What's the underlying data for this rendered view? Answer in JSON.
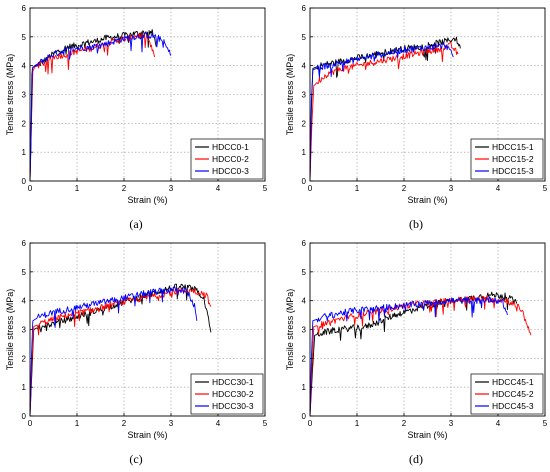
{
  "chart_data": [
    {
      "type": "line",
      "panel_label": "(a)",
      "xlabel": "Strain (%)",
      "ylabel": "Tensile stress (MPa)",
      "xlim": [
        0,
        5
      ],
      "ylim": [
        0,
        6
      ],
      "xticks": [
        "0",
        "1",
        "2",
        "3",
        "4",
        "5"
      ],
      "yticks": [
        "0",
        "1",
        "2",
        "3",
        "4",
        "5",
        "6"
      ],
      "grid": true,
      "legend_position": "bottom-right",
      "series": [
        {
          "name": "HDCC0-1",
          "color": "#000000",
          "points": [
            [
              0,
              0
            ],
            [
              0.02,
              1.5
            ],
            [
              0.04,
              3.7
            ],
            [
              0.06,
              3.95
            ],
            [
              0.2,
              4.05
            ],
            [
              0.4,
              4.3
            ],
            [
              0.6,
              4.5
            ],
            [
              0.8,
              4.65
            ],
            [
              1.0,
              4.7
            ],
            [
              1.2,
              4.8
            ],
            [
              1.4,
              4.85
            ],
            [
              1.6,
              4.95
            ],
            [
              1.8,
              5.0
            ],
            [
              2.0,
              5.05
            ],
            [
              2.2,
              5.1
            ],
            [
              2.4,
              5.15
            ],
            [
              2.6,
              5.15
            ],
            [
              2.7,
              4.7
            ]
          ]
        },
        {
          "name": "HDCC0-2",
          "color": "#ff0000",
          "points": [
            [
              0,
              0
            ],
            [
              0.03,
              2.0
            ],
            [
              0.06,
              3.8
            ],
            [
              0.1,
              3.95
            ],
            [
              0.3,
              4.1
            ],
            [
              0.5,
              4.3
            ],
            [
              0.8,
              4.4
            ],
            [
              1.0,
              4.5
            ],
            [
              1.3,
              4.6
            ],
            [
              1.6,
              4.75
            ],
            [
              1.9,
              4.9
            ],
            [
              2.1,
              4.95
            ],
            [
              2.3,
              5.05
            ],
            [
              2.5,
              5.0
            ],
            [
              2.65,
              4.3
            ]
          ]
        },
        {
          "name": "HDCC0-3",
          "color": "#0000ff",
          "points": [
            [
              0,
              0
            ],
            [
              0.02,
              1.2
            ],
            [
              0.05,
              3.9
            ],
            [
              0.1,
              4.0
            ],
            [
              0.3,
              4.2
            ],
            [
              0.5,
              4.4
            ],
            [
              0.8,
              4.55
            ],
            [
              1.0,
              4.6
            ],
            [
              1.3,
              4.65
            ],
            [
              1.6,
              4.75
            ],
            [
              1.9,
              4.9
            ],
            [
              2.2,
              5.0
            ],
            [
              2.5,
              5.05
            ],
            [
              2.7,
              5.0
            ],
            [
              2.85,
              4.8
            ],
            [
              3.0,
              4.35
            ]
          ]
        }
      ]
    },
    {
      "type": "line",
      "panel_label": "(b)",
      "xlabel": "Strain (%)",
      "ylabel": "Tensile stress (MPa)",
      "xlim": [
        0,
        5
      ],
      "ylim": [
        0,
        6
      ],
      "xticks": [
        "0",
        "1",
        "2",
        "3",
        "4",
        "5"
      ],
      "yticks": [
        "0",
        "1",
        "2",
        "3",
        "4",
        "5",
        "6"
      ],
      "grid": true,
      "legend_position": "bottom-right",
      "series": [
        {
          "name": "HDCC15-1",
          "color": "#000000",
          "points": [
            [
              0,
              0
            ],
            [
              0.03,
              2.5
            ],
            [
              0.06,
              3.9
            ],
            [
              0.2,
              4.0
            ],
            [
              0.5,
              4.1
            ],
            [
              0.8,
              4.2
            ],
            [
              1.1,
              4.3
            ],
            [
              1.4,
              4.4
            ],
            [
              1.7,
              4.5
            ],
            [
              2.0,
              4.6
            ],
            [
              2.3,
              4.65
            ],
            [
              2.6,
              4.75
            ],
            [
              2.9,
              4.85
            ],
            [
              3.1,
              4.95
            ],
            [
              3.2,
              4.6
            ]
          ]
        },
        {
          "name": "HDCC15-2",
          "color": "#ff0000",
          "points": [
            [
              0,
              0
            ],
            [
              0.04,
              2.0
            ],
            [
              0.08,
              3.3
            ],
            [
              0.2,
              3.5
            ],
            [
              0.4,
              3.75
            ],
            [
              0.7,
              3.9
            ],
            [
              1.0,
              4.0
            ],
            [
              1.3,
              4.1
            ],
            [
              1.6,
              4.2
            ],
            [
              1.9,
              4.3
            ],
            [
              2.2,
              4.4
            ],
            [
              2.5,
              4.5
            ],
            [
              2.8,
              4.6
            ],
            [
              3.0,
              4.7
            ],
            [
              3.15,
              4.4
            ]
          ]
        },
        {
          "name": "HDCC15-3",
          "color": "#0000ff",
          "points": [
            [
              0,
              0
            ],
            [
              0.03,
              2.8
            ],
            [
              0.06,
              3.85
            ],
            [
              0.2,
              3.95
            ],
            [
              0.5,
              4.05
            ],
            [
              0.8,
              4.15
            ],
            [
              1.1,
              4.25
            ],
            [
              1.4,
              4.35
            ],
            [
              1.7,
              4.45
            ],
            [
              2.0,
              4.55
            ],
            [
              2.3,
              4.6
            ],
            [
              2.6,
              4.65
            ],
            [
              2.9,
              4.7
            ],
            [
              3.05,
              4.3
            ]
          ]
        }
      ]
    },
    {
      "type": "line",
      "panel_label": "(c)",
      "xlabel": "Strain (%)",
      "ylabel": "Tensile stress (MPa)",
      "xlim": [
        0,
        5
      ],
      "ylim": [
        0,
        6
      ],
      "xticks": [
        "0",
        "1",
        "2",
        "3",
        "4",
        "5"
      ],
      "yticks": [
        "0",
        "1",
        "2",
        "3",
        "4",
        "5",
        "6"
      ],
      "grid": true,
      "legend_position": "bottom-right",
      "series": [
        {
          "name": "HDCC30-1",
          "color": "#000000",
          "points": [
            [
              0,
              0
            ],
            [
              0.04,
              1.5
            ],
            [
              0.08,
              3.0
            ],
            [
              0.2,
              3.1
            ],
            [
              0.5,
              3.2
            ],
            [
              0.8,
              3.35
            ],
            [
              1.1,
              3.5
            ],
            [
              1.4,
              3.65
            ],
            [
              1.7,
              3.8
            ],
            [
              2.0,
              3.95
            ],
            [
              2.3,
              4.1
            ],
            [
              2.6,
              4.25
            ],
            [
              2.9,
              4.4
            ],
            [
              3.2,
              4.5
            ],
            [
              3.5,
              4.4
            ],
            [
              3.7,
              4.1
            ],
            [
              3.85,
              2.9
            ]
          ]
        },
        {
          "name": "HDCC30-2",
          "color": "#ff0000",
          "points": [
            [
              0,
              0
            ],
            [
              0.04,
              1.8
            ],
            [
              0.08,
              3.1
            ],
            [
              0.2,
              3.2
            ],
            [
              0.5,
              3.35
            ],
            [
              0.8,
              3.5
            ],
            [
              1.1,
              3.6
            ],
            [
              1.4,
              3.7
            ],
            [
              1.7,
              3.85
            ],
            [
              2.0,
              3.95
            ],
            [
              2.3,
              4.05
            ],
            [
              2.6,
              4.15
            ],
            [
              2.9,
              4.25
            ],
            [
              3.2,
              4.35
            ],
            [
              3.5,
              4.35
            ],
            [
              3.75,
              4.2
            ],
            [
              3.85,
              3.8
            ]
          ]
        },
        {
          "name": "HDCC30-3",
          "color": "#0000ff",
          "points": [
            [
              0,
              0
            ],
            [
              0.03,
              2.0
            ],
            [
              0.06,
              3.3
            ],
            [
              0.2,
              3.45
            ],
            [
              0.5,
              3.6
            ],
            [
              0.8,
              3.7
            ],
            [
              1.1,
              3.8
            ],
            [
              1.4,
              3.9
            ],
            [
              1.7,
              4.0
            ],
            [
              2.0,
              4.1
            ],
            [
              2.3,
              4.2
            ],
            [
              2.6,
              4.3
            ],
            [
              2.9,
              4.35
            ],
            [
              3.2,
              4.4
            ],
            [
              3.35,
              4.3
            ],
            [
              3.5,
              3.8
            ],
            [
              3.55,
              3.3
            ]
          ]
        }
      ]
    },
    {
      "type": "line",
      "panel_label": "(d)",
      "xlabel": "Strain (%)",
      "ylabel": "Tensile stress (MPa)",
      "xlim": [
        0,
        5
      ],
      "ylim": [
        0,
        6
      ],
      "xticks": [
        "0",
        "1",
        "2",
        "3",
        "4",
        "5"
      ],
      "yticks": [
        "0",
        "1",
        "2",
        "3",
        "4",
        "5",
        "6"
      ],
      "grid": true,
      "legend_position": "bottom-right",
      "series": [
        {
          "name": "HDCC45-1",
          "color": "#000000",
          "points": [
            [
              0,
              0
            ],
            [
              0.05,
              1.5
            ],
            [
              0.1,
              2.8
            ],
            [
              0.3,
              2.9
            ],
            [
              0.6,
              3.0
            ],
            [
              0.9,
              3.05
            ],
            [
              1.2,
              3.1
            ],
            [
              1.5,
              3.3
            ],
            [
              1.8,
              3.5
            ],
            [
              2.1,
              3.65
            ],
            [
              2.4,
              3.8
            ],
            [
              2.7,
              3.9
            ],
            [
              3.0,
              4.0
            ],
            [
              3.3,
              4.05
            ],
            [
              3.6,
              4.15
            ],
            [
              3.9,
              4.2
            ],
            [
              4.2,
              4.15
            ],
            [
              4.4,
              3.9
            ]
          ]
        },
        {
          "name": "HDCC45-2",
          "color": "#ff0000",
          "points": [
            [
              0,
              0
            ],
            [
              0.04,
              1.6
            ],
            [
              0.08,
              3.1
            ],
            [
              0.3,
              3.2
            ],
            [
              0.6,
              3.35
            ],
            [
              0.9,
              3.45
            ],
            [
              1.2,
              3.55
            ],
            [
              1.5,
              3.65
            ],
            [
              1.8,
              3.75
            ],
            [
              2.1,
              3.85
            ],
            [
              2.4,
              3.9
            ],
            [
              2.7,
              3.95
            ],
            [
              3.0,
              4.0
            ],
            [
              3.3,
              4.05
            ],
            [
              3.6,
              4.05
            ],
            [
              3.9,
              4.05
            ],
            [
              4.2,
              4.0
            ],
            [
              4.5,
              3.7
            ],
            [
              4.7,
              2.8
            ]
          ]
        },
        {
          "name": "HDCC45-3",
          "color": "#0000ff",
          "points": [
            [
              0,
              0
            ],
            [
              0.03,
              2.0
            ],
            [
              0.06,
              3.3
            ],
            [
              0.3,
              3.45
            ],
            [
              0.6,
              3.55
            ],
            [
              0.9,
              3.65
            ],
            [
              1.2,
              3.7
            ],
            [
              1.5,
              3.75
            ],
            [
              1.8,
              3.8
            ],
            [
              2.1,
              3.85
            ],
            [
              2.4,
              3.9
            ],
            [
              2.7,
              3.95
            ],
            [
              3.0,
              4.0
            ],
            [
              3.3,
              4.0
            ],
            [
              3.6,
              4.0
            ],
            [
              3.9,
              4.05
            ],
            [
              4.1,
              3.95
            ],
            [
              4.2,
              3.5
            ]
          ]
        }
      ]
    }
  ]
}
